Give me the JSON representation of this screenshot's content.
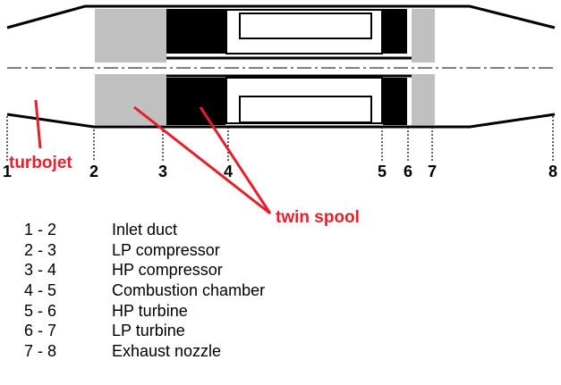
{
  "stations": [
    "1",
    "2",
    "3",
    "4",
    "5",
    "6",
    "7",
    "8"
  ],
  "callouts": {
    "turbojet": "turbojet",
    "twin_spool": "twin spool"
  },
  "legend": [
    {
      "range": "1 - 2",
      "name": "Inlet duct"
    },
    {
      "range": "2 - 3",
      "name": "LP compressor"
    },
    {
      "range": "3 - 4",
      "name": "HP compressor"
    },
    {
      "range": "4 - 5",
      "name": "Combustion chamber"
    },
    {
      "range": "5 - 6",
      "name": "HP turbine"
    },
    {
      "range": "6 - 7",
      "name": "LP turbine"
    },
    {
      "range": "7 - 8",
      "name": "Exhaust nozzle"
    }
  ],
  "colors": {
    "casing": "#000000",
    "compressor_block": "#c0c0c0",
    "spool_block": "#000000",
    "annotation": "#e3202b"
  }
}
